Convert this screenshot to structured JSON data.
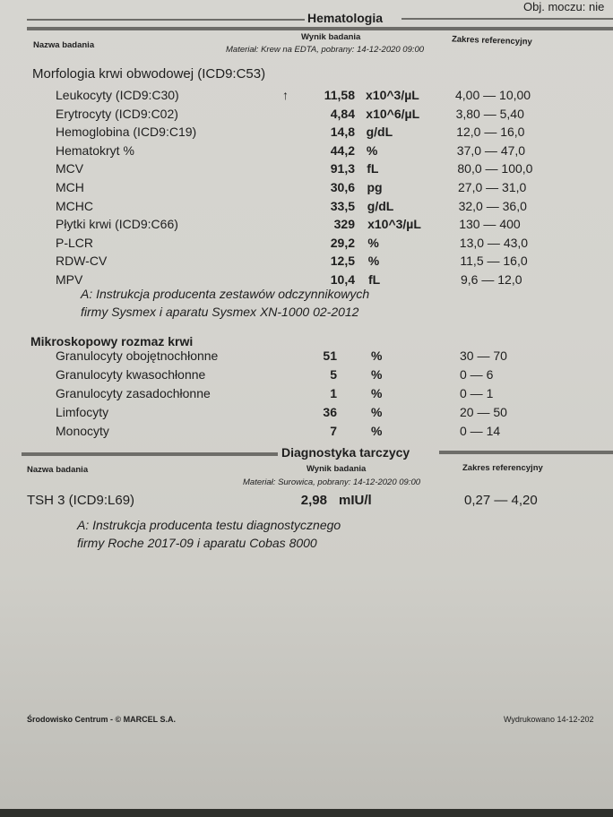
{
  "top_right": "Obj. moczu: nie",
  "hematology": {
    "title": "Hematologia",
    "col_name": "Nazwa badania",
    "col_result": "Wynik badania",
    "col_ref": "Zakres referencyjny",
    "material": "Materiał: Krew na EDTA, pobrany: 14-12-2020 09:00",
    "group": "Morfologia krwi obwodowej (ICD9:C53)",
    "rows": [
      {
        "name": "Leukocyty (ICD9:C30)",
        "flag": "↑",
        "value": "11,58",
        "unit": "x10^3/µL",
        "ref": "4,00 — 10,00"
      },
      {
        "name": "Erytrocyty (ICD9:C02)",
        "flag": "",
        "value": "4,84",
        "unit": "x10^6/µL",
        "ref": "3,80 — 5,40"
      },
      {
        "name": "Hemoglobina (ICD9:C19)",
        "flag": "",
        "value": "14,8",
        "unit": "g/dL",
        "ref": "12,0 — 16,0"
      },
      {
        "name": "Hematokryt %",
        "flag": "",
        "value": "44,2",
        "unit": "%",
        "ref": "37,0 — 47,0"
      },
      {
        "name": "MCV",
        "flag": "",
        "value": "91,3",
        "unit": "fL",
        "ref": "80,0 — 100,0"
      },
      {
        "name": "MCH",
        "flag": "",
        "value": "30,6",
        "unit": "pg",
        "ref": "27,0 — 31,0"
      },
      {
        "name": "MCHC",
        "flag": "",
        "value": "33,5",
        "unit": "g/dL",
        "ref": "32,0 — 36,0"
      },
      {
        "name": "Płytki krwi (ICD9:C66)",
        "flag": "",
        "value": "329",
        "unit": "x10^3/µL",
        "ref": "130 — 400"
      },
      {
        "name": "P-LCR",
        "flag": "",
        "value": "29,2",
        "unit": "%",
        "ref": "13,0 — 43,0"
      },
      {
        "name": "RDW-CV",
        "flag": "",
        "value": "12,5",
        "unit": "%",
        "ref": "11,5 — 16,0"
      },
      {
        "name": "MPV",
        "flag": "",
        "value": "10,4",
        "unit": "fL",
        "ref": "9,6 — 12,0"
      }
    ],
    "note_1": "A: Instrukcja producenta zestawów odczynnikowych",
    "note_2": "firmy Sysmex  i aparatu Sysmex XN-1000 02-2012",
    "micro_group": "Mikroskopowy rozmaz krwi",
    "micro_rows": [
      {
        "name": "Granulocyty obojętnochłonne",
        "value": "51",
        "unit": "%",
        "ref": "30 — 70"
      },
      {
        "name": "Granulocyty kwasochłonne",
        "value": "5",
        "unit": "%",
        "ref": "0 — 6"
      },
      {
        "name": "Granulocyty zasadochłonne",
        "value": "1",
        "unit": "%",
        "ref": "0 — 1"
      },
      {
        "name": "Limfocyty",
        "value": "36",
        "unit": "%",
        "ref": "20 — 50"
      },
      {
        "name": "Monocyty",
        "value": "7",
        "unit": "%",
        "ref": "0 — 14"
      }
    ]
  },
  "thyroid": {
    "title": "Diagnostyka tarczycy",
    "col_name": "Nazwa badania",
    "col_result": "Wynik badania",
    "col_ref": "Zakres referencyjny",
    "material": "Materiał: Surowica, pobrany: 14-12-2020 09:00",
    "row": {
      "name": "TSH 3 (ICD9:L69)",
      "value": "2,98",
      "unit": "mIU/l",
      "ref": "0,27 — 4,20"
    },
    "note_1": "A: Instrukcja producenta testu diagnostycznego",
    "note_2": "firmy Roche 2017-09 i aparatu Cobas 8000"
  },
  "footer": {
    "left": "Środowisko Centrum - © MARCEL S.A.",
    "right": "Wydrukowano  14-12-202"
  }
}
